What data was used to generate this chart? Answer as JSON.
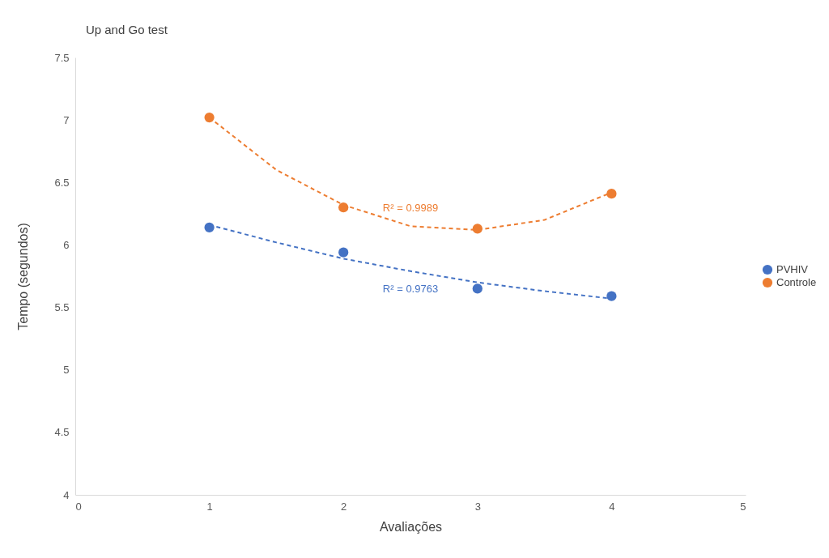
{
  "chart_data": {
    "type": "scatter",
    "title": "Up and Go test",
    "xlabel": "Avaliações",
    "ylabel": "Tempo (segundos)",
    "xlim": [
      0,
      5
    ],
    "xticks": [
      0,
      1,
      2,
      3,
      4,
      5
    ],
    "ylim": [
      4,
      7.5
    ],
    "yticks": [
      4,
      4.5,
      5,
      5.5,
      6,
      6.5,
      7,
      7.5
    ],
    "grid": false,
    "legend": "right",
    "marker": "circle",
    "series": [
      {
        "name": "PVHIV",
        "color": "#4472c4",
        "x": [
          1,
          2,
          3,
          4
        ],
        "values": [
          6.14,
          5.94,
          5.65,
          5.59
        ]
      },
      {
        "name": "Controle",
        "color": "#ed7d31",
        "x": [
          1,
          2,
          3,
          4
        ],
        "values": [
          7.02,
          6.3,
          6.13,
          6.41
        ]
      },
      {
        "type": "line",
        "color": "#4472c4",
        "line_style": "dashed",
        "marker": "none",
        "x": [
          1,
          1.5,
          2,
          2.5,
          3,
          3.5,
          4
        ],
        "values": [
          6.16,
          6.02,
          5.89,
          5.79,
          5.7,
          5.63,
          5.57
        ]
      },
      {
        "type": "line",
        "color": "#ed7d31",
        "line_style": "dashed",
        "marker": "none",
        "x": [
          1,
          1.5,
          2,
          2.5,
          3,
          3.5,
          4
        ],
        "values": [
          7.02,
          6.6,
          6.32,
          6.15,
          6.12,
          6.2,
          6.42
        ]
      }
    ],
    "annotations": [
      "R² = 0.9763",
      "R² = 0.9989"
    ]
  }
}
